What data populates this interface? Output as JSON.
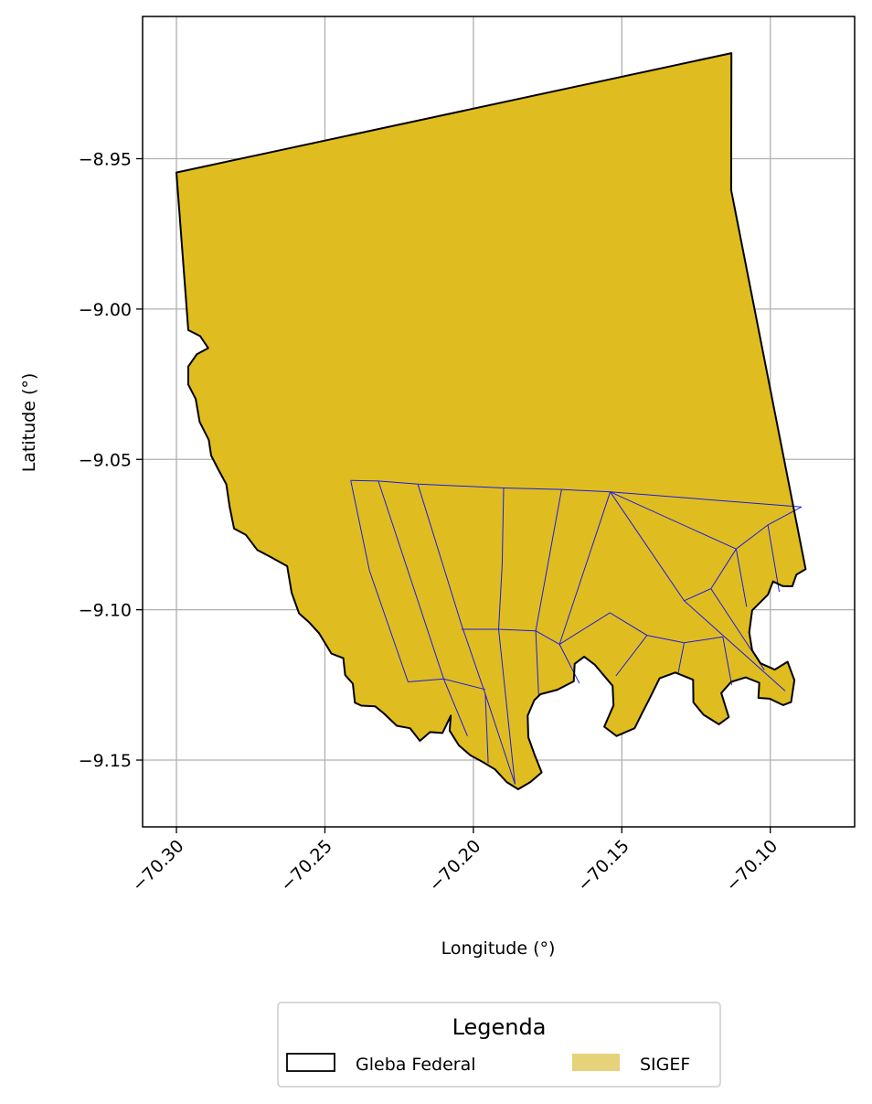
{
  "chart_data": {
    "type": "map",
    "xlabel": "Longitude (°)",
    "ylabel": "Latitude (°)",
    "xlim": [
      -70.3114,
      -70.0716
    ],
    "ylim": [
      -9.1722,
      -8.9027
    ],
    "xticks": [
      -70.3,
      -70.25,
      -70.2,
      -70.15,
      -70.1
    ],
    "xtick_labels": [
      "−70.30",
      "−70.25",
      "−70.20",
      "−70.15",
      "−70.10"
    ],
    "yticks": [
      -8.95,
      -9.0,
      -9.05,
      -9.1,
      -9.15
    ],
    "ytick_labels": [
      "−8.95",
      "−9.00",
      "−9.05",
      "−9.10",
      "−9.15"
    ],
    "grid": true,
    "legend": {
      "title": "Legenda",
      "placement": "bottom-center",
      "entries": [
        {
          "label": "Gleba Federal",
          "style": "outline",
          "color": "#000000"
        },
        {
          "label": "SIGEF",
          "style": "fill",
          "color": "#e6d27a"
        }
      ]
    },
    "colors": {
      "sigef_fill": "#dfbd20",
      "gleba_outline": "#000000",
      "parcel_lines": "#1a1ae6",
      "grid": "#b0b0b0"
    },
    "gleba_boundary": [
      [
        -70.3,
        -8.9546
      ],
      [
        -70.1131,
        -8.9149
      ],
      [
        -70.1132,
        -8.9604
      ],
      [
        -70.0881,
        -9.0865
      ],
      [
        -70.0912,
        -9.0883
      ],
      [
        -70.0926,
        -9.0922
      ],
      [
        -70.0959,
        -9.0921
      ],
      [
        -70.0991,
        -9.0906
      ],
      [
        -70.1008,
        -9.095
      ],
      [
        -70.1061,
        -9.1002
      ],
      [
        -70.1071,
        -9.1075
      ],
      [
        -70.1061,
        -9.1135
      ],
      [
        -70.1033,
        -9.1178
      ],
      [
        -70.0985,
        -9.1199
      ],
      [
        -70.0942,
        -9.1173
      ],
      [
        -70.0919,
        -9.1234
      ],
      [
        -70.093,
        -9.1307
      ],
      [
        -70.0957,
        -9.1317
      ],
      [
        -70.1002,
        -9.1296
      ],
      [
        -70.104,
        -9.1293
      ],
      [
        -70.1037,
        -9.1243
      ],
      [
        -70.1083,
        -9.1225
      ],
      [
        -70.1132,
        -9.124
      ],
      [
        -70.1165,
        -9.1277
      ],
      [
        -70.114,
        -9.1357
      ],
      [
        -70.1173,
        -9.1381
      ],
      [
        -70.1225,
        -9.1349
      ],
      [
        -70.1259,
        -9.1308
      ],
      [
        -70.126,
        -9.1233
      ],
      [
        -70.132,
        -9.1209
      ],
      [
        -70.1373,
        -9.1228
      ],
      [
        -70.1406,
        -9.1294
      ],
      [
        -70.1433,
        -9.1346
      ],
      [
        -70.1457,
        -9.1394
      ],
      [
        -70.1518,
        -9.142
      ],
      [
        -70.1559,
        -9.1389
      ],
      [
        -70.1528,
        -9.1318
      ],
      [
        -70.1531,
        -9.1253
      ],
      [
        -70.1591,
        -9.1183
      ],
      [
        -70.1627,
        -9.1156
      ],
      [
        -70.1659,
        -9.118
      ],
      [
        -70.1662,
        -9.1238
      ],
      [
        -70.1717,
        -9.1266
      ],
      [
        -70.1774,
        -9.1281
      ],
      [
        -70.1795,
        -9.1301
      ],
      [
        -70.1817,
        -9.1352
      ],
      [
        -70.1815,
        -9.1424
      ],
      [
        -70.1793,
        -9.1484
      ],
      [
        -70.177,
        -9.1541
      ],
      [
        -70.1808,
        -9.1573
      ],
      [
        -70.1849,
        -9.1597
      ],
      [
        -70.1888,
        -9.1573
      ],
      [
        -70.1927,
        -9.1531
      ],
      [
        -70.1969,
        -9.1506
      ],
      [
        -70.201,
        -9.1484
      ],
      [
        -70.2049,
        -9.1451
      ],
      [
        -70.208,
        -9.1402
      ],
      [
        -70.2076,
        -9.1352
      ],
      [
        -70.2104,
        -9.141
      ],
      [
        -70.2146,
        -9.1407
      ],
      [
        -70.218,
        -9.1436
      ],
      [
        -70.2213,
        -9.1394
      ],
      [
        -70.2258,
        -9.1386
      ],
      [
        -70.23,
        -9.1346
      ],
      [
        -70.2331,
        -9.1321
      ],
      [
        -70.2377,
        -9.1319
      ],
      [
        -70.2399,
        -9.1309
      ],
      [
        -70.2406,
        -9.1246
      ],
      [
        -70.2432,
        -9.1217
      ],
      [
        -70.2438,
        -9.1161
      ],
      [
        -70.2478,
        -9.1146
      ],
      [
        -70.2519,
        -9.1079
      ],
      [
        -70.2552,
        -9.1043
      ],
      [
        -70.2587,
        -9.1012
      ],
      [
        -70.2612,
        -9.0944
      ],
      [
        -70.2627,
        -9.0855
      ],
      [
        -70.2684,
        -9.0824
      ],
      [
        -70.2728,
        -9.0801
      ],
      [
        -70.2766,
        -9.0751
      ],
      [
        -70.2806,
        -9.073
      ],
      [
        -70.2821,
        -9.0657
      ],
      [
        -70.2832,
        -9.0583
      ],
      [
        -70.2862,
        -9.0528
      ],
      [
        -70.2883,
        -9.0487
      ],
      [
        -70.2891,
        -9.0435
      ],
      [
        -70.2922,
        -9.0375
      ],
      [
        -70.2935,
        -9.0299
      ],
      [
        -70.296,
        -9.0251
      ],
      [
        -70.296,
        -9.0191
      ],
      [
        -70.2931,
        -9.015
      ],
      [
        -70.2893,
        -9.013
      ],
      [
        -70.292,
        -9.009
      ],
      [
        -70.296,
        -9.007
      ],
      [
        -70.3,
        -8.9546
      ]
    ],
    "parcel_lines": [
      [
        [
          -70.2413,
          -9.057
        ],
        [
          -70.232,
          -9.0572
        ],
        [
          -70.2187,
          -9.0582
        ],
        [
          -70.1898,
          -9.0595
        ],
        [
          -70.1703,
          -9.06
        ],
        [
          -70.1539,
          -9.0608
        ],
        [
          -70.0895,
          -9.0658
        ]
      ],
      [
        [
          -70.2413,
          -9.057
        ],
        [
          -70.235,
          -9.087
        ],
        [
          -70.222,
          -9.124
        ]
      ],
      [
        [
          -70.232,
          -9.0572
        ],
        [
          -70.21,
          -9.123
        ],
        [
          -70.202,
          -9.142
        ]
      ],
      [
        [
          -70.2187,
          -9.0582
        ],
        [
          -70.204,
          -9.105
        ],
        [
          -70.196,
          -9.128
        ],
        [
          -70.195,
          -9.151
        ]
      ],
      [
        [
          -70.1898,
          -9.0595
        ],
        [
          -70.1903,
          -9.085
        ],
        [
          -70.1915,
          -9.1065
        ]
      ],
      [
        [
          -70.1703,
          -9.06
        ],
        [
          -70.179,
          -9.107
        ],
        [
          -70.178,
          -9.129
        ]
      ],
      [
        [
          -70.1539,
          -9.0608
        ],
        [
          -70.171,
          -9.1115
        ],
        [
          -70.1643,
          -9.1245
        ]
      ],
      [
        [
          -70.204,
          -9.1065
        ],
        [
          -70.1915,
          -9.1065
        ],
        [
          -70.179,
          -9.107
        ]
      ],
      [
        [
          -70.179,
          -9.107
        ],
        [
          -70.171,
          -9.1115
        ],
        [
          -70.154,
          -9.101
        ],
        [
          -70.1415,
          -9.1085
        ],
        [
          -70.129,
          -9.111
        ],
        [
          -70.116,
          -9.109
        ]
      ],
      [
        [
          -70.222,
          -9.124
        ],
        [
          -70.21,
          -9.123
        ],
        [
          -70.196,
          -9.1265
        ]
      ],
      [
        [
          -70.1915,
          -9.1065
        ],
        [
          -70.186,
          -9.158
        ]
      ],
      [
        [
          -70.196,
          -9.128
        ],
        [
          -70.188,
          -9.152
        ],
        [
          -70.186,
          -9.158
        ]
      ],
      [
        [
          -70.1539,
          -9.0608
        ],
        [
          -70.1115,
          -9.0798
        ],
        [
          -70.1008,
          -9.0718
        ],
        [
          -70.0895,
          -9.0658
        ]
      ],
      [
        [
          -70.1539,
          -9.0608
        ],
        [
          -70.129,
          -9.097
        ],
        [
          -70.12,
          -9.093
        ],
        [
          -70.1115,
          -9.0798
        ]
      ],
      [
        [
          -70.1115,
          -9.0798
        ],
        [
          -70.108,
          -9.099
        ]
      ],
      [
        [
          -70.1008,
          -9.0718
        ],
        [
          -70.097,
          -9.094
        ]
      ],
      [
        [
          -70.129,
          -9.097
        ],
        [
          -70.095,
          -9.127
        ]
      ],
      [
        [
          -70.12,
          -9.093
        ],
        [
          -70.102,
          -9.12
        ]
      ],
      [
        [
          -70.1415,
          -9.1085
        ],
        [
          -70.152,
          -9.122
        ]
      ],
      [
        [
          -70.129,
          -9.111
        ],
        [
          -70.131,
          -9.121
        ]
      ],
      [
        [
          -70.116,
          -9.109
        ],
        [
          -70.113,
          -9.125
        ]
      ]
    ]
  }
}
